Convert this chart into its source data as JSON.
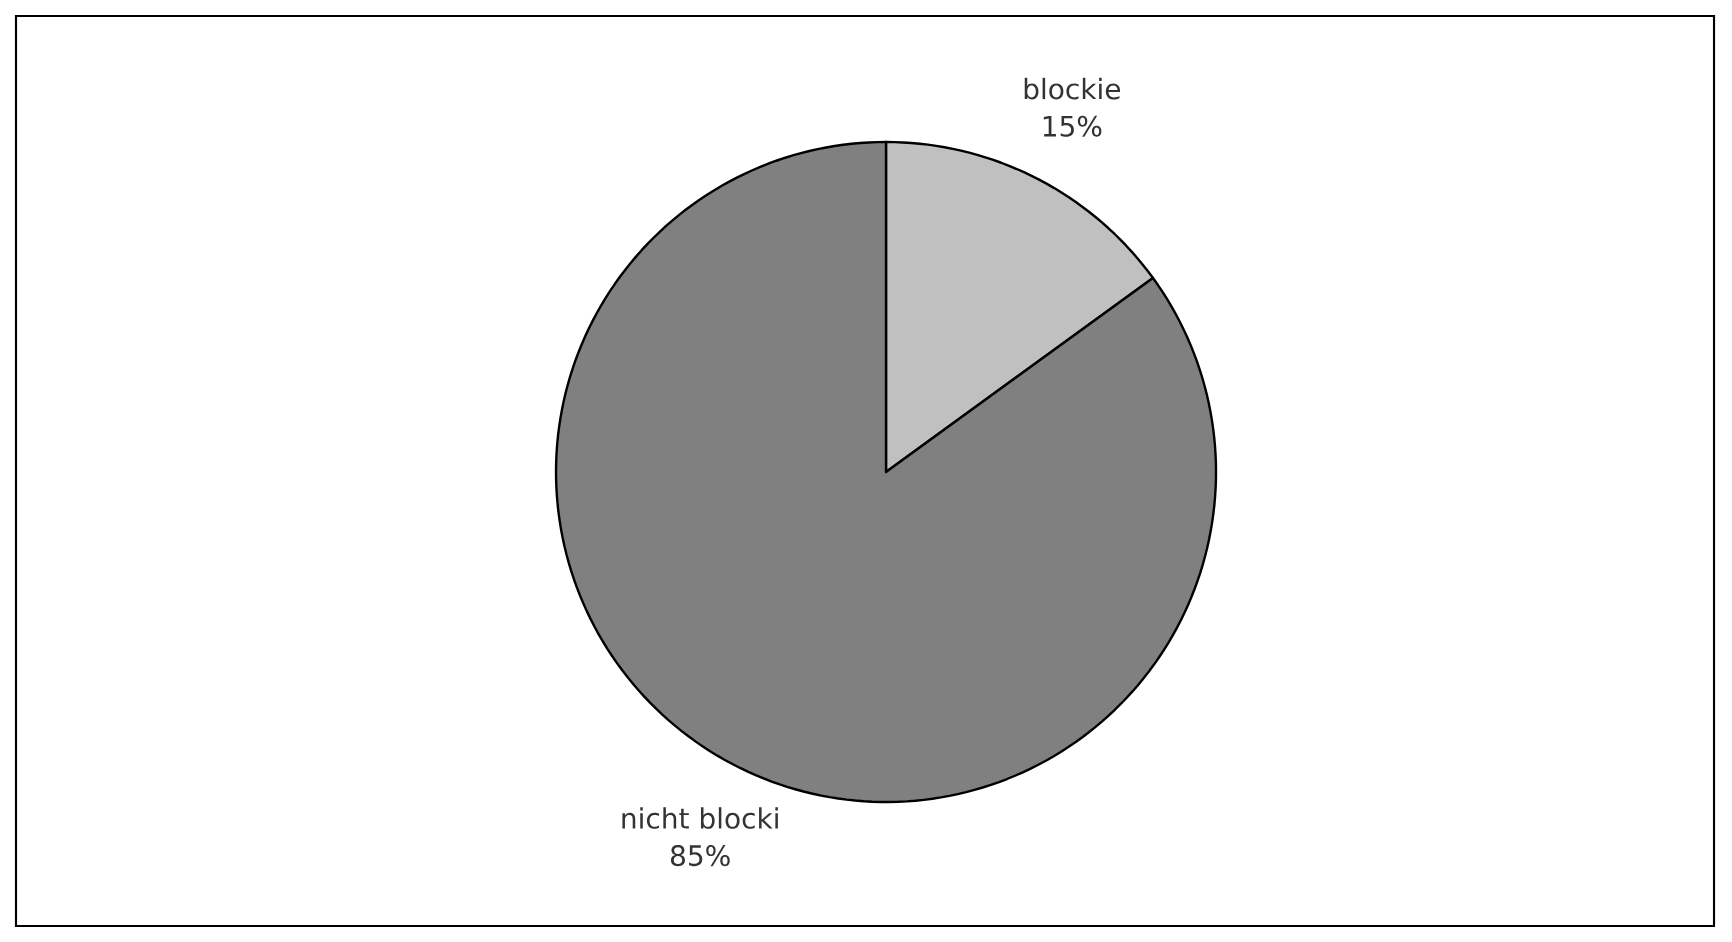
{
  "chart_data": {
    "type": "pie",
    "categories": [
      "blockie",
      "nicht blocki"
    ],
    "values": [
      15,
      85
    ],
    "colors": [
      "#c0c0c0",
      "#808080"
    ],
    "value_labels": [
      "15%",
      "85%"
    ]
  }
}
